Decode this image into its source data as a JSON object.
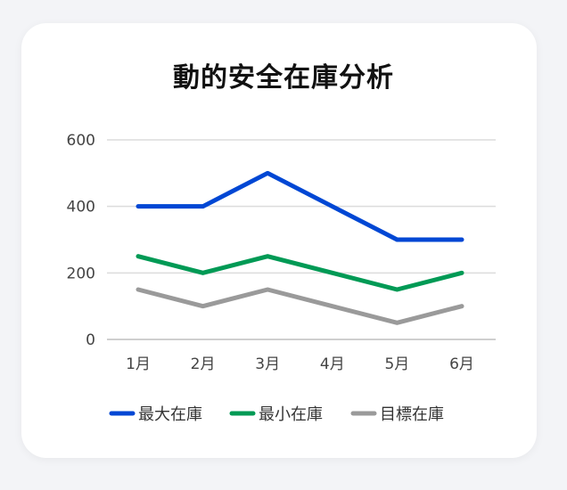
{
  "chart_data": {
    "type": "line",
    "title": "動的安全在庫分析",
    "categories": [
      "1月",
      "2月",
      "3月",
      "4月",
      "5月",
      "6月"
    ],
    "series": [
      {
        "name": "最大在庫",
        "color": "#0047d4",
        "values": [
          400,
          400,
          500,
          400,
          300,
          300
        ]
      },
      {
        "name": "最小在庫",
        "color": "#009a55",
        "values": [
          250,
          200,
          250,
          200,
          150,
          200
        ]
      },
      {
        "name": "目標在庫",
        "color": "#9a9a9a",
        "values": [
          150,
          100,
          150,
          100,
          50,
          100
        ]
      }
    ],
    "ylim": [
      0,
      600
    ],
    "yticks": [
      0,
      200,
      400,
      600
    ],
    "grid": true,
    "legend_position": "bottom"
  }
}
